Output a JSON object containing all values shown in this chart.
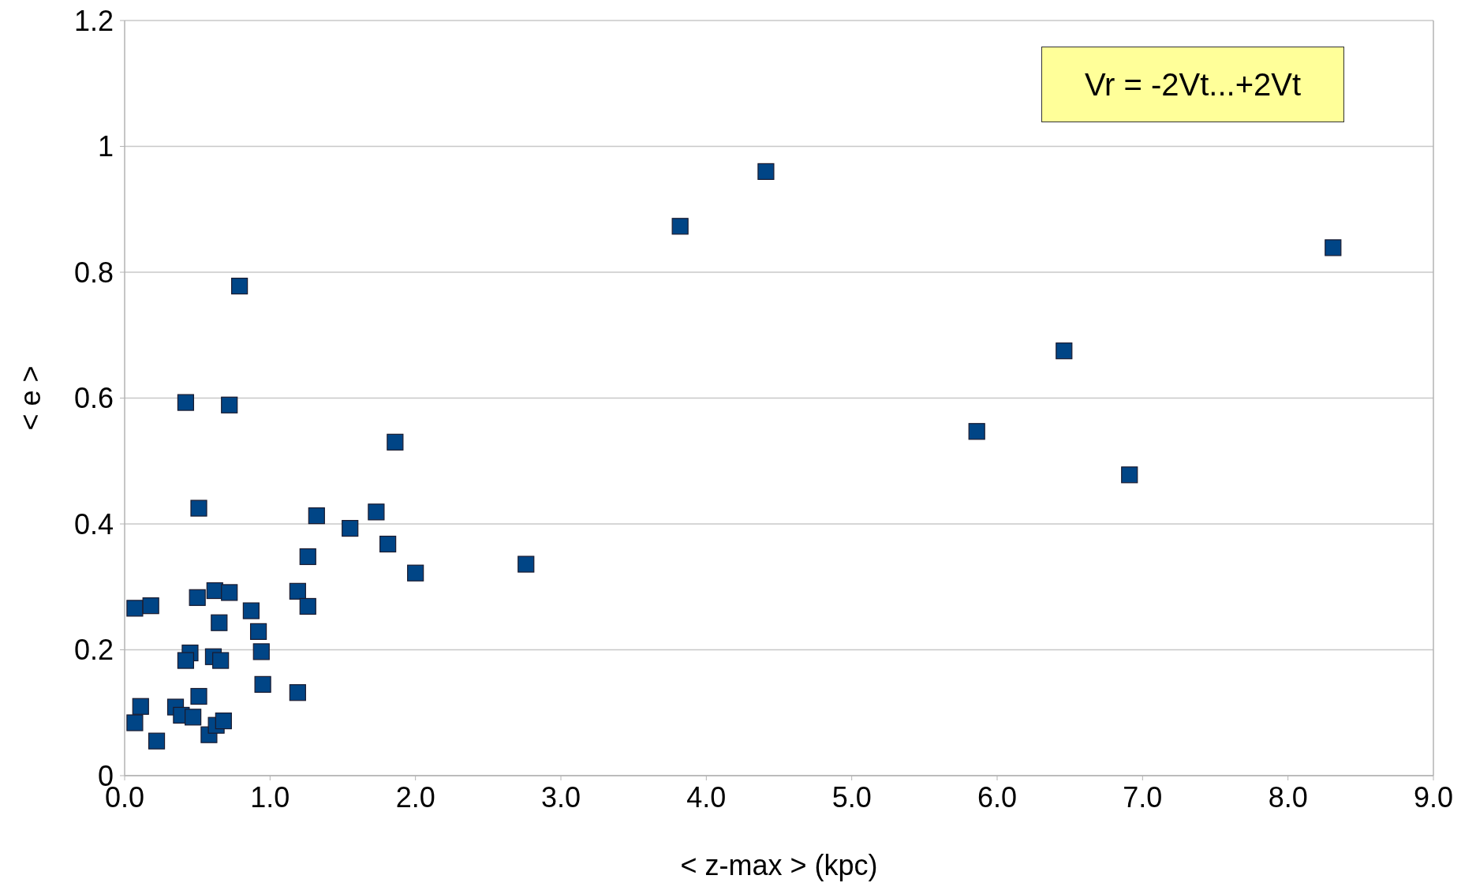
{
  "chart_data": {
    "type": "scatter",
    "xlabel": "< z-max >  (kpc)",
    "ylabel": "< e >",
    "annotations": [
      "Vr = -2Vt...+2Vt"
    ],
    "x": [
      0.07,
      0.18,
      0.07,
      0.11,
      0.22,
      0.42,
      0.72,
      0.79,
      0.51,
      0.5,
      0.62,
      0.72,
      0.65,
      0.87,
      0.92,
      0.94,
      0.45,
      0.42,
      0.61,
      0.66,
      0.95,
      0.51,
      0.35,
      0.39,
      0.47,
      0.58,
      0.63,
      0.68,
      1.19,
      1.19,
      1.26,
      1.26,
      1.32,
      1.55,
      1.73,
      1.81,
      1.86,
      2.0,
      2.76,
      3.82,
      4.41,
      5.86,
      6.46,
      6.91,
      8.31
    ],
    "values": [
      0.266,
      0.27,
      0.084,
      0.11,
      0.055,
      0.593,
      0.589,
      0.778,
      0.425,
      0.283,
      0.294,
      0.291,
      0.243,
      0.262,
      0.229,
      0.197,
      0.195,
      0.183,
      0.189,
      0.183,
      0.145,
      0.126,
      0.109,
      0.096,
      0.093,
      0.065,
      0.08,
      0.087,
      0.132,
      0.293,
      0.269,
      0.348,
      0.413,
      0.393,
      0.419,
      0.368,
      0.53,
      0.322,
      0.336,
      0.873,
      0.96,
      0.547,
      0.675,
      0.478,
      0.839
    ],
    "color": "#004586",
    "marker": "square",
    "grid": "y",
    "legend": false,
    "xlim": [
      0,
      9
    ],
    "xticks": [
      {
        "value": 0,
        "label": "0.0"
      },
      {
        "value": 1,
        "label": "1.0"
      },
      {
        "value": 2,
        "label": "2.0"
      },
      {
        "value": 3,
        "label": "3.0"
      },
      {
        "value": 4,
        "label": "4.0"
      },
      {
        "value": 5,
        "label": "5.0"
      },
      {
        "value": 6,
        "label": "6.0"
      },
      {
        "value": 7,
        "label": "7.0"
      },
      {
        "value": 8,
        "label": "8.0"
      },
      {
        "value": 9,
        "label": "9.0"
      }
    ],
    "ylim": [
      0,
      1.2
    ],
    "yticks": [
      0,
      0.2,
      0.4,
      0.6,
      0.8,
      1,
      1.2
    ]
  }
}
